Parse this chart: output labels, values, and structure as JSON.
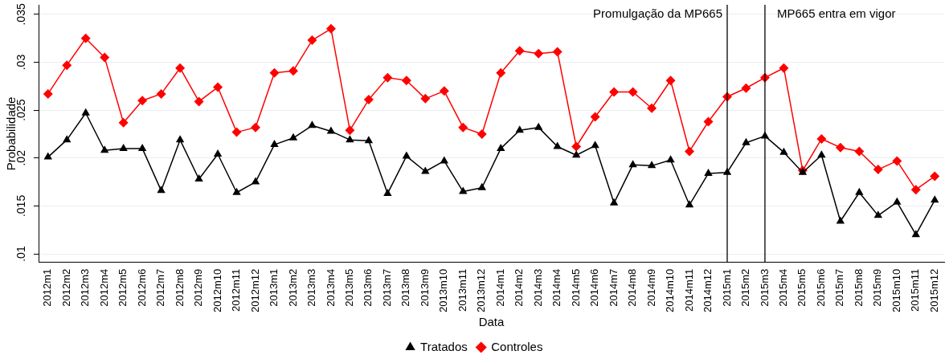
{
  "chart_data": {
    "type": "line",
    "xlabel": "Data",
    "ylabel": "Probabilidade",
    "categories": [
      "2012m1",
      "2012m2",
      "2012m3",
      "2012m4",
      "2012m5",
      "2012m6",
      "2012m7",
      "2012m8",
      "2012m9",
      "2012m10",
      "2012m11",
      "2012m12",
      "2013m1",
      "2013m2",
      "2013m3",
      "2013m4",
      "2013m5",
      "2013m6",
      "2013m7",
      "2013m8",
      "2013m9",
      "2013m10",
      "2013m11",
      "2013m12",
      "2014m1",
      "2014m2",
      "2014m3",
      "2014m4",
      "2014m5",
      "2014m6",
      "2014m7",
      "2014m8",
      "2014m9",
      "2014m10",
      "2014m11",
      "2014m12",
      "2015m1",
      "2015m2",
      "2015m3",
      "2015m4",
      "2015m5",
      "2015m6",
      "2015m7",
      "2015m8",
      "2015m9",
      "2015m10",
      "2015m11",
      "2015m12"
    ],
    "series": [
      {
        "name": "Tratados",
        "color": "#000000",
        "marker": "triangle",
        "values": [
          0.0201,
          0.0219,
          0.0247,
          0.0208,
          0.021,
          0.021,
          0.0166,
          0.0219,
          0.0178,
          0.0204,
          0.0164,
          0.0175,
          0.0214,
          0.0221,
          0.0234,
          0.0228,
          0.0219,
          0.0218,
          0.0163,
          0.0202,
          0.0186,
          0.0197,
          0.0165,
          0.0169,
          0.021,
          0.0229,
          0.0232,
          0.0212,
          0.0203,
          0.0213,
          0.0153,
          0.0193,
          0.0192,
          0.0198,
          0.0151,
          0.0184,
          0.0185,
          0.0216,
          0.0223,
          0.0206,
          0.0185,
          0.0203,
          0.0134,
          0.0164,
          0.014,
          0.0154,
          0.012,
          0.0156
        ]
      },
      {
        "name": "Controles",
        "color": "#ff0000",
        "marker": "diamond",
        "values": [
          0.0267,
          0.0297,
          0.0325,
          0.0305,
          0.0237,
          0.026,
          0.0267,
          0.0294,
          0.0259,
          0.0274,
          0.0227,
          0.0232,
          0.0289,
          0.0291,
          0.0323,
          0.0335,
          0.0229,
          0.0261,
          0.0284,
          0.0281,
          0.0262,
          0.027,
          0.0232,
          0.0225,
          0.0289,
          0.0312,
          0.0309,
          0.0311,
          0.0212,
          0.0243,
          0.0269,
          0.0269,
          0.0252,
          0.0281,
          0.0207,
          0.0238,
          0.0264,
          0.0273,
          0.0284,
          0.0294,
          0.0187,
          0.022,
          0.0211,
          0.0207,
          0.0188,
          0.0197,
          0.0167,
          0.0181
        ]
      }
    ],
    "ylim": [
      0.0091,
      0.036
    ],
    "yticks": [
      {
        "value": 0.01,
        "label": ".01"
      },
      {
        "value": 0.015,
        "label": ".015"
      },
      {
        "value": 0.02,
        "label": ".02"
      },
      {
        "value": 0.025,
        "label": ".025"
      },
      {
        "value": 0.03,
        "label": ".03"
      },
      {
        "value": 0.035,
        "label": ".035"
      }
    ],
    "ref_lines": [
      {
        "axis": "x",
        "value": "2015m1",
        "label": "Promulgação da MP665",
        "color": "#000000"
      },
      {
        "axis": "x",
        "value": "2015m3",
        "label": "MP665 entra em vigor",
        "color": "#000000"
      }
    ],
    "grid": "y",
    "legend": "bottom",
    "line_style": "solid"
  }
}
